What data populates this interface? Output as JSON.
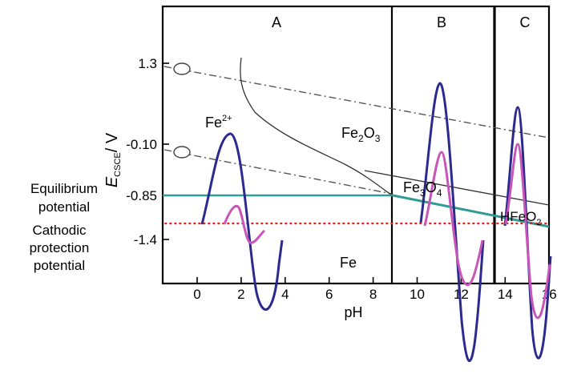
{
  "chart_data": {
    "type": "line",
    "xlabel": "pH",
    "ylabel_main": "E",
    "ylabel_sub": "CSCE",
    "ylabel_unit": "/ V",
    "x_ticks": [
      "0",
      "2",
      "4",
      "6",
      "8",
      "10",
      "12",
      "14",
      "16"
    ],
    "y_ticks": [
      "1.3",
      "-0.10",
      "-0.85",
      "-1.4"
    ],
    "regions": [
      "A",
      "B",
      "C"
    ],
    "region_boundaries_pH": [
      8.9,
      13.6
    ],
    "side_labels": {
      "equilibrium": [
        "Equilibrium",
        "potential"
      ],
      "cathodic": [
        "Cathodic",
        "protection",
        "potential"
      ]
    },
    "species": {
      "fe2": {
        "base": "Fe",
        "sup": "2+"
      },
      "fe2o3": {
        "base": "Fe",
        "sub1": "2",
        "mid": "O",
        "sub2": "3"
      },
      "fe3o4": {
        "base": "Fe",
        "sub1": "3",
        "mid": "O",
        "sub2": "4"
      },
      "hfeo2": {
        "base": "HFeO",
        "sub": "2"
      },
      "fe": "Fe"
    },
    "levels": {
      "equilibrium_potential": -0.85,
      "cathodic_protection_potential": -1.2
    },
    "colors": {
      "axes": "#000000",
      "equilibrium": "#2e9b96",
      "cathodic": "#e0201f",
      "wave_major": "#2c2a8f",
      "wave_minor": "#c855b8",
      "boundary": "#3a3a3a"
    },
    "series": [
      {
        "x": [
          -1.7,
          8.9
        ],
        "y": [
          -0.85,
          -0.85
        ]
      },
      {
        "x": [
          8.9,
          16
        ],
        "y": [
          -0.85,
          -1.24
        ]
      },
      {
        "x": [
          -1.7,
          16
        ],
        "y": [
          -1.2,
          -1.2
        ]
      }
    ]
  }
}
